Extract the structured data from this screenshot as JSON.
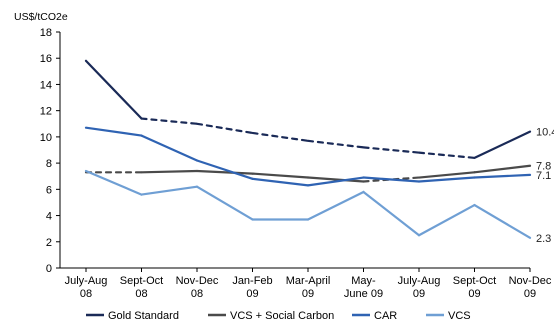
{
  "chart_data": {
    "type": "line",
    "title": "",
    "ylabel": "US$/tCO2e",
    "xlabel": "",
    "ylim": [
      0,
      18
    ],
    "yticks": [
      0,
      2,
      4,
      6,
      8,
      10,
      12,
      14,
      16,
      18
    ],
    "grid": false,
    "legend_position": "bottom",
    "categories": [
      [
        "July-Aug",
        "08"
      ],
      [
        "Sept-Oct",
        "08"
      ],
      [
        "Nov-Dec",
        "08"
      ],
      [
        "Jan-Feb",
        "09"
      ],
      [
        "Mar-April",
        "09"
      ],
      [
        "May-",
        "June 09"
      ],
      [
        "July-Aug",
        "09"
      ],
      [
        "Sept-Oct",
        "09"
      ],
      [
        "Nov-Dec",
        "09"
      ]
    ],
    "series": [
      {
        "name": "Gold Standard",
        "color": "#1a2a57",
        "values": [
          15.8,
          11.4,
          11.0,
          10.3,
          9.7,
          9.2,
          8.8,
          8.4,
          10.4
        ],
        "styles": [
          "solid",
          "dashed",
          "dashed",
          "dashed",
          "dashed",
          "dashed",
          "dashed",
          "solid"
        ],
        "end_label": "10.4"
      },
      {
        "name": "VCS + Social Carbon",
        "color": "#4a4a4a",
        "values": [
          7.3,
          7.3,
          7.4,
          7.2,
          6.9,
          6.6,
          6.9,
          7.3,
          7.8
        ],
        "styles": [
          "dashed",
          "solid",
          "solid",
          "solid",
          "solid",
          "dashed",
          "solid",
          "solid"
        ],
        "end_label": "7.8"
      },
      {
        "name": "CAR",
        "color": "#2f63b3",
        "values": [
          10.7,
          10.1,
          8.2,
          6.8,
          6.3,
          6.9,
          6.6,
          6.9,
          7.1
        ],
        "styles": [
          "solid",
          "solid",
          "solid",
          "solid",
          "solid",
          "solid",
          "solid",
          "solid"
        ],
        "end_label": "7.1"
      },
      {
        "name": "VCS",
        "color": "#6f9fd4",
        "values": [
          7.4,
          5.6,
          6.2,
          3.7,
          3.7,
          5.8,
          2.5,
          4.8,
          2.3
        ],
        "styles": [
          "solid",
          "solid",
          "solid",
          "solid",
          "solid",
          "solid",
          "solid",
          "solid"
        ],
        "end_label": "2.3"
      }
    ]
  }
}
